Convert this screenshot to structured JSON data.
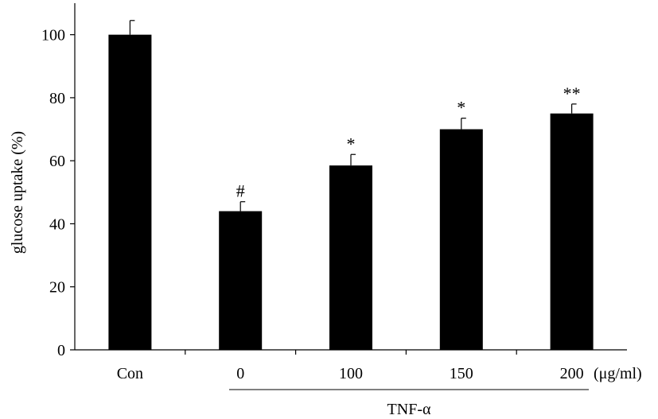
{
  "chart_data": {
    "type": "bar",
    "categories": [
      "Con",
      "0",
      "100",
      "150",
      "200"
    ],
    "values": [
      100,
      44,
      58.5,
      70,
      75
    ],
    "errors": [
      4.5,
      3,
      3.5,
      3.5,
      3
    ],
    "annotations": [
      "",
      "#",
      "*",
      "*",
      "**"
    ],
    "ylabel": "glucose uptake (%)",
    "ylim": [
      0,
      110
    ],
    "yticks": [
      0,
      20,
      40,
      60,
      80,
      100
    ],
    "unit_label": "(μg/ml)",
    "group_label": "TNF-α",
    "bar_color": "#000000",
    "grid": false
  }
}
